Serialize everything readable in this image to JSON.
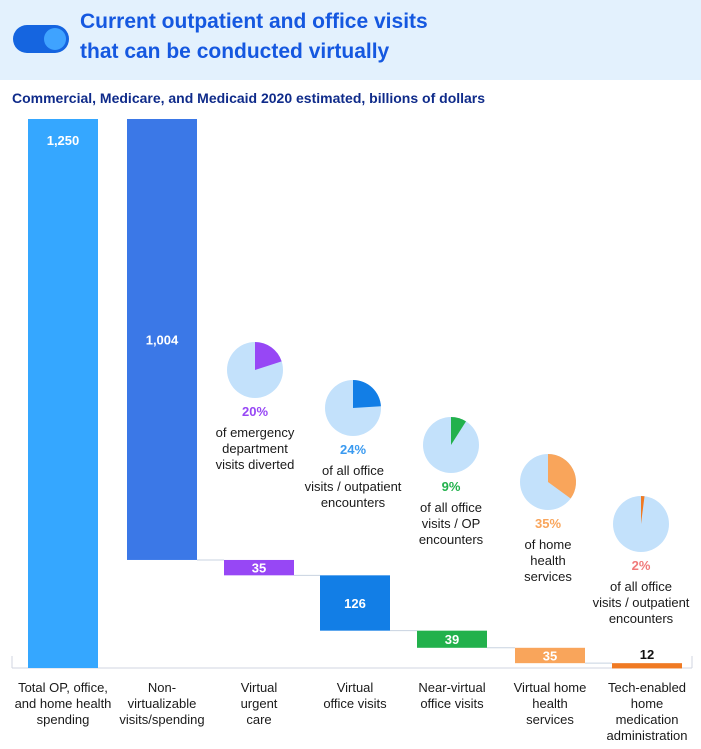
{
  "header": {
    "title_line1": "Current outpatient and office visits",
    "title_line2": "that can be conducted virtually"
  },
  "chart_data": {
    "type": "bar",
    "subtitle": "Commercial, Medicare, and Medicaid 2020 estimated, billions of dollars",
    "categories": [
      [
        "Total OP, office,",
        "and home health",
        "spending"
      ],
      [
        "Non-",
        "virtualizable",
        "visits/spending"
      ],
      [
        "Virtual",
        "urgent",
        "care"
      ],
      [
        "Virtual",
        "office visits"
      ],
      [
        "Near-virtual",
        "office visits"
      ],
      [
        "Virtual home",
        "health",
        "services"
      ],
      [
        "Tech-enabled",
        "home",
        "medication",
        "administration"
      ]
    ],
    "values": [
      1250,
      1004,
      35,
      126,
      39,
      35,
      12
    ],
    "labels": [
      "1,250",
      "1,004",
      "35",
      "126",
      "39",
      "35",
      "12"
    ],
    "colors": [
      "#35a7ff",
      "#3b78e7",
      "#9747f5",
      "#127ee6",
      "#22b14c",
      "#f9a55b",
      "#f07a23"
    ],
    "pies": [
      {
        "bar": 2,
        "pct": 20,
        "pct_label": "20%",
        "color": "#9747f5",
        "text": [
          "of emergency",
          "department",
          "visits diverted"
        ]
      },
      {
        "bar": 3,
        "pct": 24,
        "pct_label": "24%",
        "color": "#127ee6",
        "text": [
          "of all office",
          "visits / outpatient",
          "encounters"
        ]
      },
      {
        "bar": 4,
        "pct": 9,
        "pct_label": "9%",
        "color": "#22b14c",
        "text": [
          "of all office",
          "visits / OP",
          "encounters"
        ]
      },
      {
        "bar": 5,
        "pct": 35,
        "pct_label": "35%",
        "color": "#f9a55b",
        "text": [
          "of home",
          "health",
          "services"
        ]
      },
      {
        "bar": 6,
        "pct": 2,
        "pct_label": "2%",
        "color": "#f07a23",
        "text": [
          "of all office",
          "visits / outpatient",
          "encounters"
        ]
      }
    ],
    "pie_background": "#c3e1fb",
    "pie_label_colors": [
      "#9747f5",
      "#3a9af0",
      "#22b14c",
      "#f9a55b",
      "#f07a7a"
    ]
  }
}
